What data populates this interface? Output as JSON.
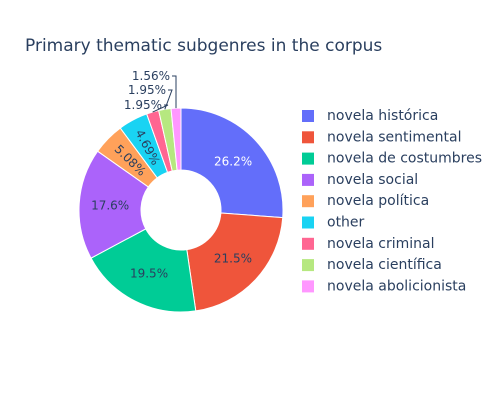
{
  "chart_data": {
    "type": "pie",
    "hole": true,
    "title": "Primary thematic subgenres in the corpus",
    "legend_position": "right",
    "slices": [
      {
        "label": "novela histórica",
        "percent": 26.2,
        "percent_label": "26.2%",
        "color": "#636efa"
      },
      {
        "label": "novela sentimental",
        "percent": 21.5,
        "percent_label": "21.5%",
        "color": "#ef553b"
      },
      {
        "label": "novela de costumbres",
        "percent": 19.5,
        "percent_label": "19.5%",
        "color": "#00cc96"
      },
      {
        "label": "novela social",
        "percent": 17.6,
        "percent_label": "17.6%",
        "color": "#ab63fa"
      },
      {
        "label": "novela política",
        "percent": 5.08,
        "percent_label": "5.08%",
        "color": "#ffa15a"
      },
      {
        "label": "other",
        "percent": 4.69,
        "percent_label": "4.69%",
        "color": "#19d3f3"
      },
      {
        "label": "novela criminal",
        "percent": 1.95,
        "percent_label": "1.95%",
        "color": "#ff6692"
      },
      {
        "label": "novela científica",
        "percent": 1.95,
        "percent_label": "1.95%",
        "color": "#b6e880"
      },
      {
        "label": "novela abolicionista",
        "percent": 1.56,
        "percent_label": "1.56%",
        "color": "#ff97ff"
      }
    ]
  }
}
